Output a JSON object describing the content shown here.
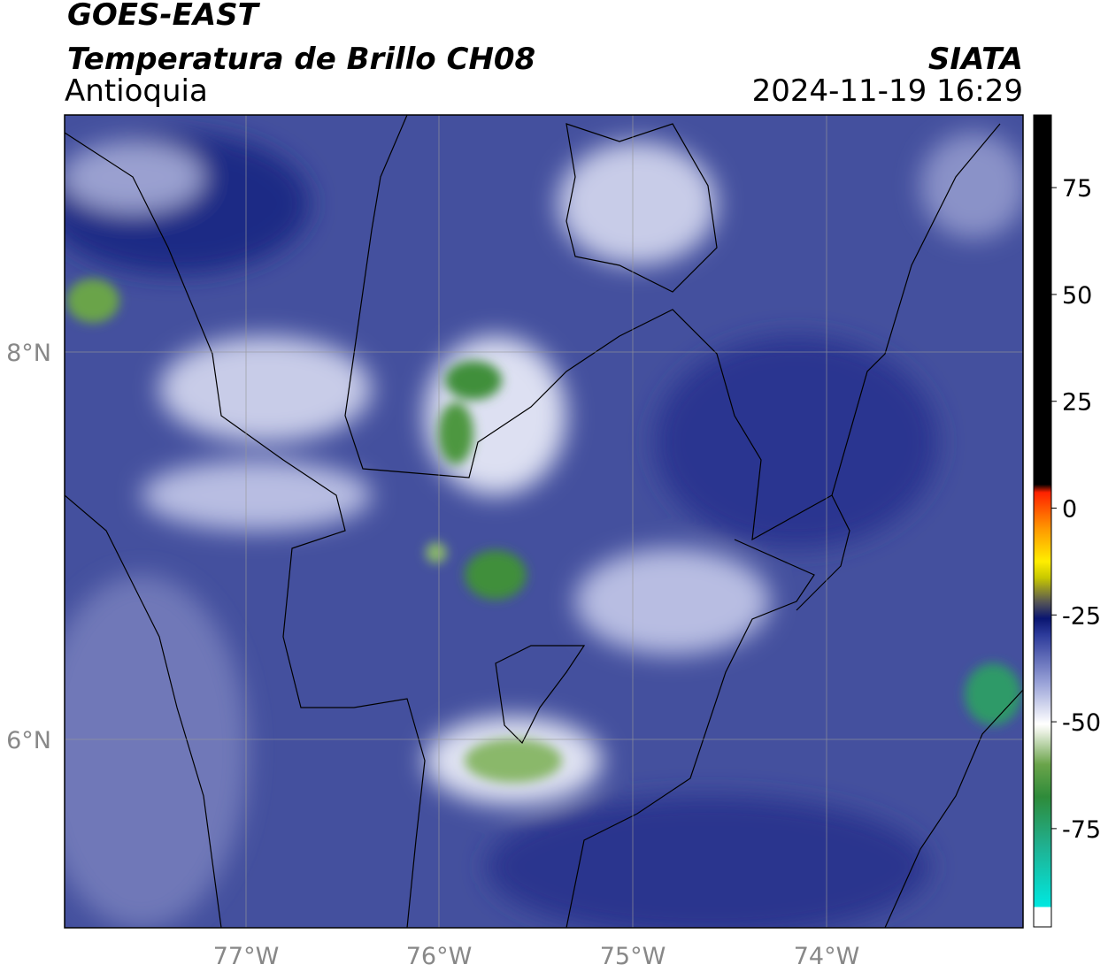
{
  "header": {
    "title": "GOES-EAST",
    "subtitle": "Temperatura de Brillo CH08",
    "region": "Antioquia",
    "source": "SIATA",
    "datetime": "2024-11-19 16:29"
  },
  "map": {
    "lon_labels": [
      "77°W",
      "76°W",
      "75°W",
      "74°W"
    ],
    "lat_labels": [
      "8°N",
      "6°N"
    ]
  },
  "colorbar": {
    "lim": [
      -98,
      92
    ],
    "ticks": [
      75,
      50,
      25,
      0,
      -25,
      -50,
      -75
    ]
  }
}
